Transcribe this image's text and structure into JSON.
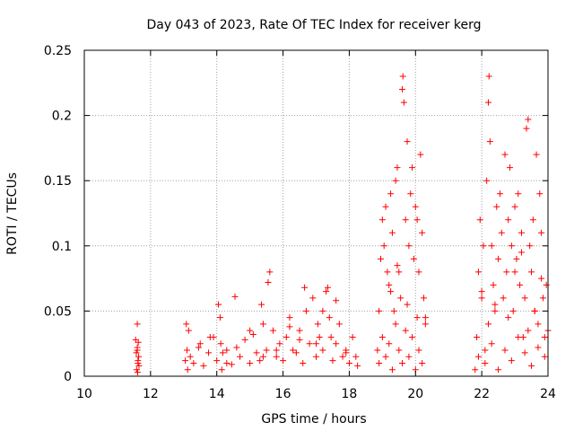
{
  "chart_data": {
    "type": "scatter",
    "title": "Day 043 of 2023, Rate Of TEC Index for receiver kerg",
    "xlabel": "GPS time / hours",
    "ylabel": "ROTI / TECUs",
    "xlim": [
      10,
      24
    ],
    "ylim": [
      0,
      0.25
    ],
    "x_ticks": [
      "10",
      "12",
      "14",
      "16",
      "18",
      "20",
      "22",
      "24"
    ],
    "y_ticks": [
      "0",
      "0.05",
      "0.1",
      "0.15",
      "0.2",
      "0.25"
    ],
    "grid": true,
    "marker": "+",
    "color": "#ff0000",
    "series": [
      {
        "x": [
          11.55,
          11.58,
          11.6,
          11.62,
          11.63,
          11.65,
          11.57,
          11.6,
          11.62,
          11.64,
          11.61,
          11.6,
          13.05,
          13.08,
          13.1,
          13.12,
          13.15,
          13.2,
          13.3,
          13.45,
          13.6,
          13.75,
          13.9,
          14.0,
          14.05,
          14.1,
          14.12,
          14.15,
          14.18,
          14.3,
          14.45,
          14.55,
          14.7,
          14.85,
          15.0,
          15.1,
          15.2,
          15.3,
          15.35,
          15.4,
          15.5,
          15.55,
          15.6,
          15.7,
          15.8,
          15.9,
          16.0,
          16.1,
          16.2,
          16.3,
          16.4,
          16.5,
          16.6,
          16.65,
          16.7,
          16.8,
          16.9,
          17.0,
          17.05,
          17.1,
          17.2,
          17.3,
          17.35,
          17.4,
          17.45,
          17.5,
          17.6,
          17.7,
          17.8,
          17.9,
          18.0,
          18.1,
          18.2,
          18.25,
          13.5,
          14.3,
          15.0,
          15.8,
          16.5,
          17.2,
          17.9,
          13.8,
          14.6,
          15.4,
          16.2,
          17.0,
          17.6,
          18.85,
          18.9,
          18.95,
          19.0,
          19.05,
          19.1,
          19.15,
          19.2,
          19.25,
          19.3,
          19.35,
          19.4,
          19.45,
          19.5,
          19.55,
          19.6,
          19.62,
          19.65,
          19.7,
          19.75,
          19.8,
          19.85,
          19.9,
          19.95,
          20.0,
          20.05,
          20.1,
          20.15,
          20.2,
          20.25,
          20.3,
          18.9,
          19.0,
          19.1,
          19.2,
          19.3,
          19.4,
          19.5,
          19.6,
          19.7,
          19.8,
          19.9,
          20.0,
          20.1,
          20.2,
          20.3,
          19.25,
          19.45,
          19.75,
          20.05,
          21.8,
          21.85,
          21.9,
          21.95,
          22.0,
          22.05,
          22.1,
          22.15,
          22.2,
          22.22,
          22.25,
          22.3,
          22.35,
          22.4,
          22.45,
          22.5,
          22.55,
          22.6,
          22.65,
          22.7,
          22.75,
          22.8,
          22.85,
          22.9,
          22.95,
          23.0,
          23.05,
          23.1,
          23.15,
          23.2,
          23.25,
          23.3,
          23.35,
          23.4,
          23.45,
          23.5,
          23.55,
          23.6,
          23.65,
          23.7,
          23.75,
          23.8,
          23.85,
          23.9,
          23.95,
          24.0,
          21.9,
          22.1,
          22.3,
          22.5,
          22.7,
          22.9,
          23.1,
          23.3,
          23.5,
          23.7,
          23.9,
          22.2,
          22.8,
          23.4,
          23.6,
          22.0,
          22.4,
          23.0,
          23.2,
          23.8
        ],
        "y": [
          0.028,
          0.005,
          0.04,
          0.012,
          0.026,
          0.008,
          0.018,
          0.022,
          0.01,
          0.015,
          0.003,
          0.02,
          0.012,
          0.04,
          0.02,
          0.005,
          0.035,
          0.015,
          0.01,
          0.022,
          0.008,
          0.018,
          0.03,
          0.012,
          0.055,
          0.045,
          0.025,
          0.005,
          0.018,
          0.02,
          0.009,
          0.061,
          0.015,
          0.028,
          0.01,
          0.032,
          0.018,
          0.012,
          0.055,
          0.04,
          0.02,
          0.072,
          0.08,
          0.035,
          0.015,
          0.025,
          0.012,
          0.03,
          0.045,
          0.02,
          0.018,
          0.035,
          0.01,
          0.068,
          0.05,
          0.025,
          0.06,
          0.015,
          0.04,
          0.03,
          0.02,
          0.065,
          0.068,
          0.045,
          0.03,
          0.012,
          0.025,
          0.04,
          0.015,
          0.02,
          0.01,
          0.03,
          0.015,
          0.008,
          0.025,
          0.01,
          0.035,
          0.02,
          0.028,
          0.05,
          0.018,
          0.03,
          0.022,
          0.015,
          0.038,
          0.025,
          0.058,
          0.02,
          0.05,
          0.09,
          0.12,
          0.1,
          0.13,
          0.08,
          0.07,
          0.14,
          0.11,
          0.05,
          0.15,
          0.16,
          0.08,
          0.06,
          0.22,
          0.23,
          0.21,
          0.12,
          0.18,
          0.1,
          0.14,
          0.16,
          0.09,
          0.13,
          0.12,
          0.08,
          0.17,
          0.11,
          0.06,
          0.045,
          0.01,
          0.03,
          0.015,
          0.025,
          0.005,
          0.04,
          0.02,
          0.01,
          0.035,
          0.015,
          0.03,
          0.005,
          0.02,
          0.01,
          0.04,
          0.065,
          0.085,
          0.055,
          0.045,
          0.005,
          0.03,
          0.08,
          0.12,
          0.06,
          0.1,
          0.02,
          0.15,
          0.21,
          0.23,
          0.18,
          0.1,
          0.07,
          0.05,
          0.13,
          0.09,
          0.14,
          0.11,
          0.06,
          0.17,
          0.08,
          0.12,
          0.16,
          0.1,
          0.05,
          0.13,
          0.09,
          0.14,
          0.07,
          0.11,
          0.03,
          0.06,
          0.19,
          0.197,
          0.1,
          0.08,
          0.12,
          0.05,
          0.17,
          0.04,
          0.14,
          0.11,
          0.06,
          0.03,
          0.07,
          0.035,
          0.015,
          0.01,
          0.025,
          0.005,
          0.02,
          0.012,
          0.03,
          0.018,
          0.008,
          0.022,
          0.015,
          0.04,
          0.045,
          0.035,
          0.05,
          0.065,
          0.055,
          0.08,
          0.095,
          0.075
        ]
      }
    ]
  }
}
